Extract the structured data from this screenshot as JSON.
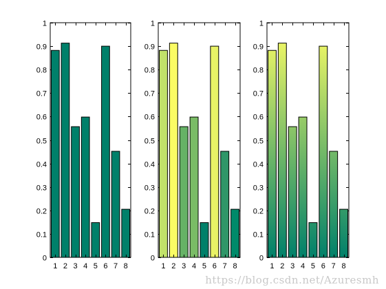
{
  "chart_data": [
    {
      "type": "bar",
      "categories": [
        "1",
        "2",
        "3",
        "4",
        "5",
        "6",
        "7",
        "8"
      ],
      "values": [
        0.882,
        0.913,
        0.557,
        0.598,
        0.148,
        0.9,
        0.452,
        0.205
      ],
      "ylim": [
        0,
        1
      ],
      "yticks": [
        "0",
        "0.1",
        "0.2",
        "0.3",
        "0.4",
        "0.5",
        "0.6",
        "0.7",
        "0.8",
        "0.9",
        "1"
      ],
      "coloring": "uniform",
      "colors": [
        "#00806a",
        "#00806a",
        "#00806a",
        "#00806a",
        "#00806a",
        "#00806a",
        "#00806a",
        "#00806a"
      ]
    },
    {
      "type": "bar",
      "categories": [
        "1",
        "2",
        "3",
        "4",
        "5",
        "6",
        "7",
        "8"
      ],
      "values": [
        0.882,
        0.913,
        0.557,
        0.598,
        0.148,
        0.9,
        0.452,
        0.205
      ],
      "ylim": [
        0,
        1
      ],
      "yticks": [
        "0",
        "0.1",
        "0.2",
        "0.3",
        "0.4",
        "0.5",
        "0.6",
        "0.7",
        "0.8",
        "0.9",
        "1"
      ],
      "coloring": "per-bar colormap by value",
      "colors": [
        "#c1e26a",
        "#fbfc64",
        "#66b266",
        "#7abc66",
        "#00806a",
        "#e8f266",
        "#2f9668",
        "#008a6a"
      ]
    },
    {
      "type": "bar",
      "categories": [
        "1",
        "2",
        "3",
        "4",
        "5",
        "6",
        "7",
        "8"
      ],
      "values": [
        0.882,
        0.913,
        0.557,
        0.598,
        0.148,
        0.9,
        0.452,
        0.205
      ],
      "ylim": [
        0,
        1
      ],
      "yticks": [
        "0",
        "0.1",
        "0.2",
        "0.3",
        "0.4",
        "0.5",
        "0.6",
        "0.7",
        "0.8",
        "0.9",
        "1"
      ],
      "coloring": "vertical gradient by height",
      "gradient": [
        "#00806a",
        "#ffff66"
      ]
    }
  ],
  "watermark": "https://blog.csdn.net/Azuresmh"
}
